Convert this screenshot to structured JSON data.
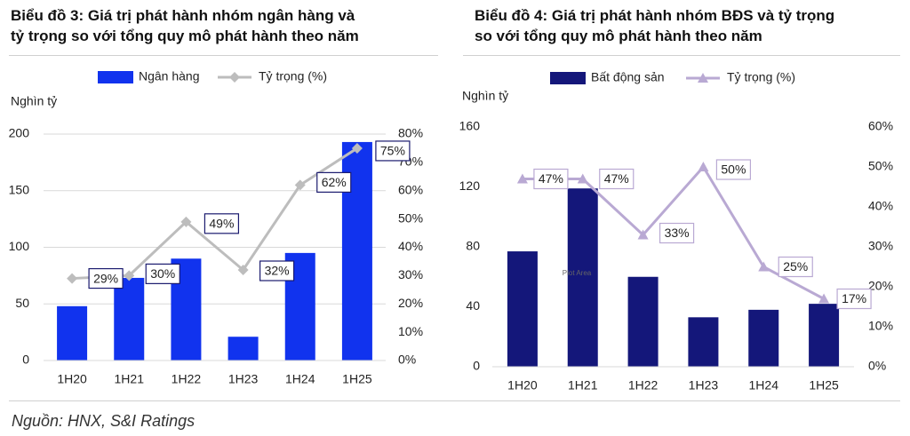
{
  "charts": {
    "left": {
      "title": "Biểu đồ 3: Giá trị phát hành nhóm ngân hàng và tỷ trọng so với tổng quy mô phát hành theo năm",
      "title_line1": "Biểu đồ 3: Giá trị phát hành nhóm ngân hàng và",
      "title_line2": "tỷ trọng so với tổng quy mô phát hành theo năm"
    },
    "right": {
      "title": "Biểu đồ 4: Giá trị phát hành nhóm BĐS và tỷ trọng so với tổng quy mô phát hành theo năm",
      "title_line1": "Biểu đồ 4: Giá trị phát hành nhóm BĐS và tỷ trọng",
      "title_line2": "so với tổng quy mô phát hành theo năm",
      "plot_area_label": "Plot Area"
    }
  },
  "source": "Nguồn: HNX, S&I Ratings",
  "chart_data": [
    {
      "type": "bar",
      "title": "Biểu đồ 3: Giá trị phát hành nhóm ngân hàng và tỷ trọng so với tổng quy mô phát hành theo năm",
      "ylabel": "Nghìn tỷ",
      "categories": [
        "1H20",
        "1H21",
        "1H22",
        "1H23",
        "1H24",
        "1H25"
      ],
      "ylim": [
        0,
        200
      ],
      "yticks": [
        0,
        50,
        100,
        150,
        200
      ],
      "y2lim": [
        0,
        80
      ],
      "y2ticks": [
        "0%",
        "10%",
        "20%",
        "30%",
        "40%",
        "50%",
        "60%",
        "70%",
        "80%"
      ],
      "legend": "top",
      "grid": true,
      "series": [
        {
          "name": "Ngân hàng",
          "kind": "bar",
          "axis": "left",
          "color": "#1133ee",
          "values": [
            48,
            73,
            90,
            21,
            95,
            193
          ]
        },
        {
          "name": "Tỷ trọng (%)",
          "kind": "line",
          "axis": "right",
          "color": "#bdbdbd",
          "marker": "diamond",
          "values": [
            29,
            30,
            49,
            32,
            62,
            75
          ],
          "labels": [
            "29%",
            "30%",
            "49%",
            "32%",
            "62%",
            "75%"
          ]
        }
      ]
    },
    {
      "type": "bar",
      "title": "Biểu đồ 4: Giá trị phát hành nhóm BĐS và tỷ trọng so với tổng quy mô phát hành theo năm",
      "ylabel": "Nghìn tỷ",
      "categories": [
        "1H20",
        "1H21",
        "1H22",
        "1H23",
        "1H24",
        "1H25"
      ],
      "ylim": [
        0,
        160
      ],
      "yticks": [
        0,
        40,
        80,
        120,
        160
      ],
      "y2lim": [
        0,
        60
      ],
      "y2ticks": [
        "0%",
        "10%",
        "20%",
        "30%",
        "40%",
        "50%",
        "60%"
      ],
      "legend": "top",
      "grid": false,
      "series": [
        {
          "name": "Bất động sản",
          "kind": "bar",
          "axis": "left",
          "color": "#14177a",
          "values": [
            77,
            119,
            60,
            33,
            38,
            42
          ]
        },
        {
          "name": "Tỷ trọng (%)",
          "kind": "line",
          "axis": "right",
          "color": "#b9a9d3",
          "marker": "triangle",
          "values": [
            47,
            47,
            33,
            50,
            25,
            17
          ],
          "labels": [
            "47%",
            "47%",
            "33%",
            "50%",
            "25%",
            "17%"
          ]
        }
      ]
    }
  ]
}
